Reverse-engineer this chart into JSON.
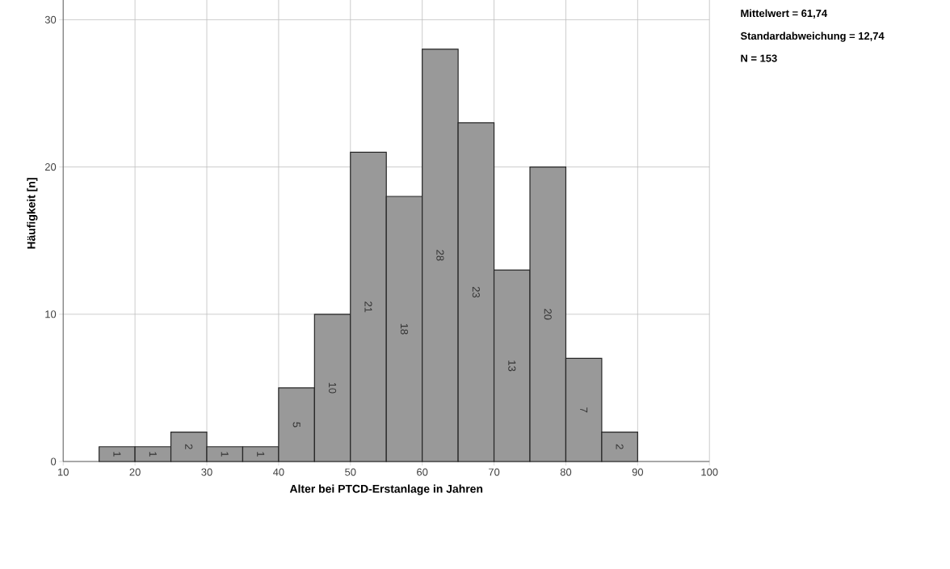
{
  "chart_data": {
    "type": "histogram",
    "xlabel": "Alter bei PTCD-Erstanlage in Jahren",
    "ylabel": "Häufigkeit [n]",
    "bins": [
      15,
      20,
      25,
      30,
      35,
      40,
      45,
      50,
      55,
      60,
      65,
      70,
      75,
      80,
      85,
      90
    ],
    "values": [
      1,
      1,
      2,
      1,
      1,
      5,
      10,
      21,
      18,
      28,
      23,
      13,
      20,
      7,
      2
    ],
    "color": "#999999",
    "xlim": [
      10,
      100
    ],
    "xticks": [
      10,
      20,
      30,
      40,
      50,
      60,
      70,
      80,
      90,
      100
    ],
    "ylim": [
      0,
      33.7
    ],
    "yticks": [
      0,
      10,
      20,
      30
    ],
    "grid": true,
    "data_labels": true,
    "annotations": [
      "Mittelwert = 61,74",
      "Standardabweichung = 12,74",
      "N = 153"
    ]
  }
}
